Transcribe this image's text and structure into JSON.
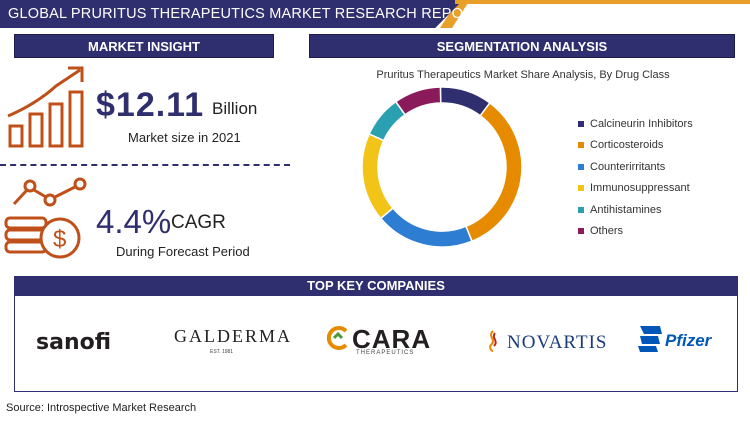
{
  "header": {
    "title": "GLOBAL PRURITUS THERAPEUTICS MARKET RESEARCH REPORT"
  },
  "market_insight": {
    "heading": "MARKET INSIGHT",
    "market_size_value": "$12.11",
    "market_size_unit": "Billion",
    "market_size_label": "Market size in 2021",
    "cagr_value": "4.4%",
    "cagr_label": "CAGR",
    "cagr_sub": "During Forecast Period"
  },
  "segmentation": {
    "heading": "SEGMENTATION ANALYSIS",
    "chart_title": "Pruritus Therapeutics Market Share Analysis, By Drug Class"
  },
  "chart_data": {
    "type": "pie",
    "title": "Pruritus Therapeutics Market Share Analysis, By Drug Class",
    "categories": [
      "Calcineurin Inhibitors",
      "Corticosteroids",
      "Counterirritants",
      "Immunosuppressant",
      "Antihistamines",
      "Others"
    ],
    "values": [
      10,
      32,
      19,
      17,
      8,
      9
    ],
    "colors": [
      "#2f2e6e",
      "#e68a00",
      "#2d7dd2",
      "#f2c418",
      "#2aa0b0",
      "#8b1a5a"
    ],
    "legend_position": "right"
  },
  "companies": {
    "heading": "TOP KEY COMPANIES",
    "sanofi": "sanofi",
    "galderma": "GALDERMA",
    "galderma_sub": "EST. 1981",
    "cara": "CARA",
    "cara_sub": "THERAPEUTICS",
    "novartis": "NOVARTIS",
    "pfizer": "Pfizer"
  },
  "source": "Source: Introspective Market Research",
  "icons": {
    "growth": "bar-chart-growth-icon",
    "money": "dollar-coin-stack-icon"
  }
}
